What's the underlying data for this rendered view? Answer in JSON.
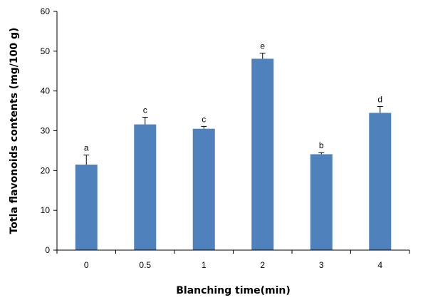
{
  "chart_data": {
    "type": "bar",
    "title": "",
    "xlabel": "Blanching time(min)",
    "ylabel": "Totla flavonoids contents (mg/100 g)",
    "categories": [
      "0",
      "0.5",
      "1",
      "2",
      "3",
      "4"
    ],
    "values": [
      21.5,
      31.6,
      30.5,
      48.1,
      24.1,
      34.5
    ],
    "errors": [
      2.4,
      1.8,
      0.6,
      1.4,
      0.4,
      1.6
    ],
    "labels": [
      "a",
      "c",
      "c",
      "e",
      "b",
      "d"
    ],
    "ylim": [
      0,
      60
    ],
    "yticks": [
      "0",
      "10",
      "20",
      "30",
      "40",
      "50",
      "60"
    ],
    "grid": false,
    "legend": "none",
    "bar_color": "#4f81bd"
  }
}
